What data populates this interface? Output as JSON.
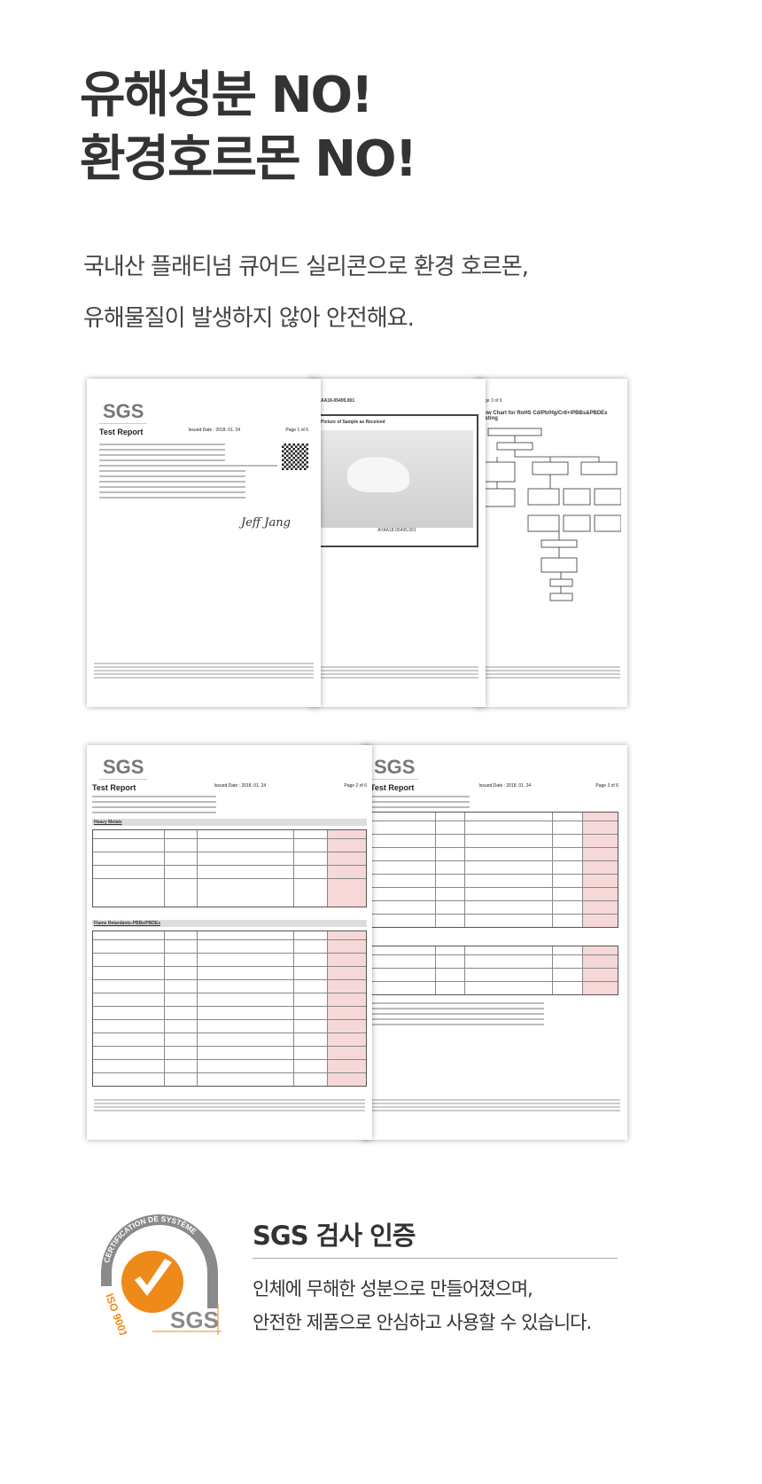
{
  "headline": {
    "line1": "유해성분 NO!",
    "line2": "환경호르몬 NO!"
  },
  "subtitle": {
    "line1": "국내산 플래티넘 큐어드 실리콘으로 환경 호르몬,",
    "line2": "유해물질이 발생하지 않아 안전해요."
  },
  "documents": {
    "brand": "SGS",
    "report_title": "Test Report",
    "issued_date": "Issued Date : 2018. 01. 24",
    "pages": [
      "Page 1 of 6",
      "Page 2 of 6",
      "Page 3 of 6"
    ],
    "sample_no": "AYAA18-05495.001",
    "photo_title": "Picture of Sample as Received",
    "flow_title": "Flow Chart for RoHS Cd/Pb/Hg/Cr6+/PBBs&PBDEs Testing",
    "signature": "Jeff Jang",
    "sections": [
      "Heavy Metals",
      "Flame Retardants-PBBs/PBDEs"
    ]
  },
  "certification": {
    "logo_text": "CERTIFICATION DE SYSTÈME",
    "iso": "ISO 9001",
    "logo_brand": "SGS",
    "title": "SGS 검사 인증",
    "line1": "인체에 무해한 성분으로 만들어졌으며,",
    "line2": "안전한 제품으로 안심하고 사용할 수 있습니다.",
    "colors": {
      "orange": "#ee8a1a",
      "grey": "#8a8a8a"
    }
  }
}
